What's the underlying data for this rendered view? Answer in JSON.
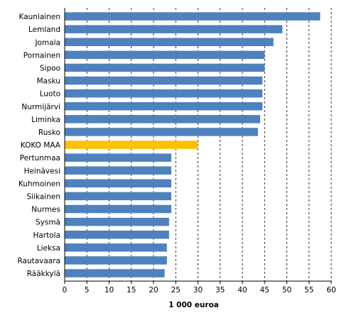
{
  "chart_data": {
    "type": "bar",
    "orientation": "horizontal",
    "categories": [
      "Kauniainen",
      "Lemland",
      "Jomala",
      "Pornainen",
      "Sipoo",
      "Masku",
      "Luoto",
      "Nurmijärvi",
      "Liminka",
      "Rusko",
      "KOKO MAA",
      "Pertunmaa",
      "Heinävesi",
      "Kuhmoinen",
      "Siikainen",
      "Nurmes",
      "Sysmä",
      "Hartola",
      "Lieksa",
      "Rautavaara",
      "Rääkkylä"
    ],
    "values": [
      57.5,
      49,
      47,
      45,
      45,
      44.5,
      44.5,
      44.5,
      44,
      43.5,
      30,
      24,
      24,
      24,
      24,
      24,
      23.5,
      23.5,
      23,
      23,
      22.5
    ],
    "highlight_category": "KOKO MAA",
    "xlabel": "1 000 euroa",
    "xlim": [
      0,
      60
    ],
    "xticks": [
      0,
      5,
      10,
      15,
      20,
      25,
      30,
      35,
      40,
      45,
      50,
      55,
      60
    ],
    "grid": "vertical dashed",
    "colors": {
      "bar": "#4F81BD",
      "highlight": "#FFC000",
      "grid": "#000000"
    }
  }
}
